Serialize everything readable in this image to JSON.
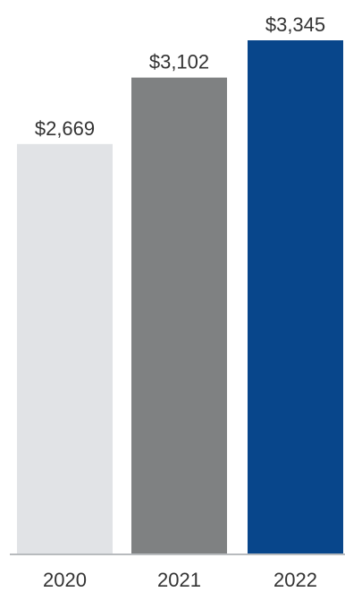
{
  "chart_data": {
    "type": "bar",
    "categories": [
      "2020",
      "2021",
      "2022"
    ],
    "values": [
      2669,
      3102,
      3345
    ],
    "value_labels": [
      "$2,669",
      "$3,102",
      "$3,345"
    ],
    "bar_colors": [
      "#e1e3e6",
      "#7f8182",
      "#08468b"
    ],
    "title": "",
    "xlabel": "",
    "ylabel": "",
    "ylim": [
      0,
      3345
    ],
    "grid": false,
    "legend": "none"
  }
}
